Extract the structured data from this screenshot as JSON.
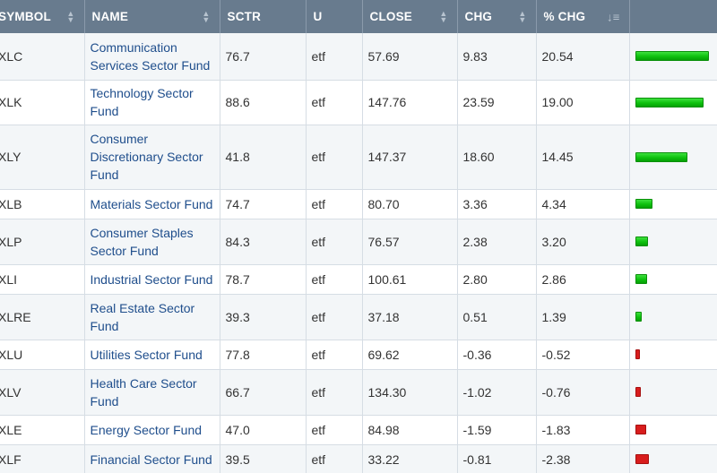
{
  "colors": {
    "header_bg": "#687b8e",
    "name_link": "#1f4e8c",
    "bar_positive": "#0ec10e",
    "bar_negative": "#d81d1d"
  },
  "header": {
    "symbol": "SYMBOL",
    "name": "NAME",
    "sctr": "SCTR",
    "u": "U",
    "close": "CLOSE",
    "chg": "CHG",
    "pct_chg": "% CHG"
  },
  "rows": [
    {
      "symbol": "XLC",
      "name": "Communication Services Sector Fund",
      "sctr": "76.7",
      "u": "etf",
      "close": "57.69",
      "chg": "9.83",
      "pct_chg": "20.54",
      "pct": 20.54
    },
    {
      "symbol": "XLK",
      "name": "Technology Sector Fund",
      "sctr": "88.6",
      "u": "etf",
      "close": "147.76",
      "chg": "23.59",
      "pct_chg": "19.00",
      "pct": 19.0
    },
    {
      "symbol": "XLY",
      "name": "Consumer Discretionary Sector Fund",
      "sctr": "41.8",
      "u": "etf",
      "close": "147.37",
      "chg": "18.60",
      "pct_chg": "14.45",
      "pct": 14.45
    },
    {
      "symbol": "XLB",
      "name": "Materials Sector Fund",
      "sctr": "74.7",
      "u": "etf",
      "close": "80.70",
      "chg": "3.36",
      "pct_chg": "4.34",
      "pct": 4.34
    },
    {
      "symbol": "XLP",
      "name": "Consumer Staples Sector Fund",
      "sctr": "84.3",
      "u": "etf",
      "close": "76.57",
      "chg": "2.38",
      "pct_chg": "3.20",
      "pct": 3.2
    },
    {
      "symbol": "XLI",
      "name": "Industrial Sector Fund",
      "sctr": "78.7",
      "u": "etf",
      "close": "100.61",
      "chg": "2.80",
      "pct_chg": "2.86",
      "pct": 2.86
    },
    {
      "symbol": "XLRE",
      "name": "Real Estate Sector Fund",
      "sctr": "39.3",
      "u": "etf",
      "close": "37.18",
      "chg": "0.51",
      "pct_chg": "1.39",
      "pct": 1.39
    },
    {
      "symbol": "XLU",
      "name": "Utilities Sector Fund",
      "sctr": "77.8",
      "u": "etf",
      "close": "69.62",
      "chg": "-0.36",
      "pct_chg": "-0.52",
      "pct": -0.52
    },
    {
      "symbol": "XLV",
      "name": "Health Care Sector Fund",
      "sctr": "66.7",
      "u": "etf",
      "close": "134.30",
      "chg": "-1.02",
      "pct_chg": "-0.76",
      "pct": -0.76
    },
    {
      "symbol": "XLE",
      "name": "Energy Sector Fund",
      "sctr": "47.0",
      "u": "etf",
      "close": "84.98",
      "chg": "-1.59",
      "pct_chg": "-1.83",
      "pct": -1.83
    },
    {
      "symbol": "XLF",
      "name": "Financial Sector Fund",
      "sctr": "39.5",
      "u": "etf",
      "close": "33.22",
      "chg": "-0.81",
      "pct_chg": "-2.38",
      "pct": -2.38
    }
  ]
}
